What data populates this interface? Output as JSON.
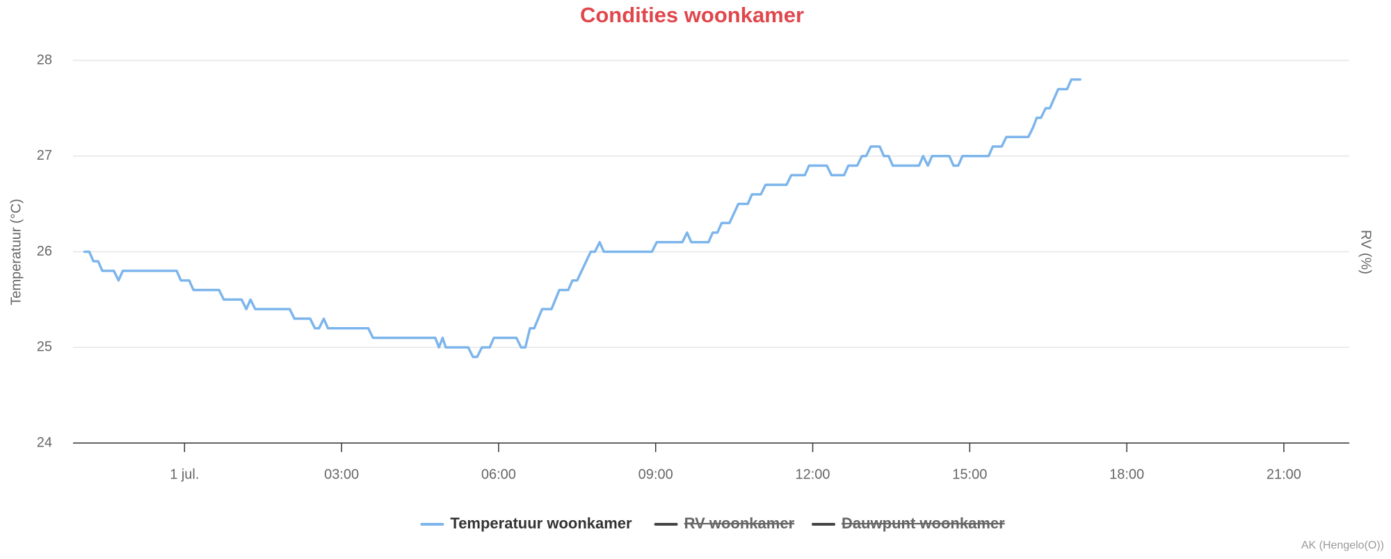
{
  "chart_data": {
    "type": "line",
    "title": "Condities woonkamer",
    "y_label": "Temperatuur (°C)",
    "y2_label": "RV (%)",
    "credits": "AK (Hengelo(O))",
    "xlim": [
      -2.13,
      22.25
    ],
    "xticks": [
      {
        "value": 0,
        "label": "1 jul."
      },
      {
        "value": 3,
        "label": "03:00"
      },
      {
        "value": 6,
        "label": "06:00"
      },
      {
        "value": 9,
        "label": "09:00"
      },
      {
        "value": 12,
        "label": "12:00"
      },
      {
        "value": 15,
        "label": "15:00"
      },
      {
        "value": 18,
        "label": "18:00"
      },
      {
        "value": 21,
        "label": "21:00"
      }
    ],
    "ylim": [
      24,
      28
    ],
    "yticks": [
      24,
      25,
      26,
      27,
      28
    ],
    "grid": true,
    "legend": "bottom",
    "x": [
      -1.91,
      -1.82,
      -1.74,
      -1.65,
      -1.57,
      -1.35,
      -1.26,
      -1.18,
      -0.15,
      -0.07,
      0.09,
      0.17,
      0.66,
      0.75,
      1.09,
      1.18,
      1.26,
      1.35,
      2.01,
      2.1,
      2.4,
      2.49,
      2.57,
      2.66,
      2.74,
      3.51,
      3.6,
      4.79,
      4.86,
      4.93,
      4.99,
      5.42,
      5.51,
      5.59,
      5.68,
      5.83,
      5.91,
      6.34,
      6.43,
      6.51,
      6.6,
      6.68,
      6.83,
      7.01,
      7.16,
      7.33,
      7.41,
      7.5,
      7.76,
      7.84,
      7.93,
      8.01,
      8.93,
      9.02,
      9.51,
      9.6,
      9.68,
      10.01,
      10.09,
      10.18,
      10.26,
      10.41,
      10.58,
      10.76,
      10.84,
      11.01,
      11.1,
      11.5,
      11.59,
      11.85,
      11.93,
      12.27,
      12.36,
      12.6,
      12.68,
      12.85,
      12.94,
      13.02,
      13.11,
      13.28,
      13.36,
      13.45,
      13.53,
      14.03,
      14.11,
      14.2,
      14.28,
      14.61,
      14.69,
      14.78,
      14.86,
      15.36,
      15.44,
      15.61,
      15.7,
      16.12,
      16.21,
      16.28,
      16.36,
      16.45,
      16.53,
      16.69,
      16.86,
      16.94,
      17.11
    ],
    "series": [
      {
        "name": "Temperatuur woonkamer",
        "color": "#7cb5ec",
        "visible": true,
        "values": [
          26.0,
          26.0,
          25.9,
          25.9,
          25.8,
          25.8,
          25.7,
          25.8,
          25.8,
          25.7,
          25.7,
          25.6,
          25.6,
          25.5,
          25.5,
          25.4,
          25.5,
          25.4,
          25.4,
          25.3,
          25.3,
          25.2,
          25.2,
          25.3,
          25.2,
          25.2,
          25.1,
          25.1,
          25.0,
          25.1,
          25.0,
          25.0,
          24.9,
          24.9,
          25.0,
          25.0,
          25.1,
          25.1,
          25.0,
          25.0,
          25.2,
          25.2,
          25.4,
          25.4,
          25.6,
          25.6,
          25.7,
          25.7,
          26.0,
          26.0,
          26.1,
          26.0,
          26.0,
          26.1,
          26.1,
          26.2,
          26.1,
          26.1,
          26.2,
          26.2,
          26.3,
          26.3,
          26.5,
          26.5,
          26.6,
          26.6,
          26.7,
          26.7,
          26.8,
          26.8,
          26.9,
          26.9,
          26.8,
          26.8,
          26.9,
          26.9,
          27.0,
          27.0,
          27.1,
          27.1,
          27.0,
          27.0,
          26.9,
          26.9,
          27.0,
          26.9,
          27.0,
          27.0,
          26.9,
          26.9,
          27.0,
          27.0,
          27.1,
          27.1,
          27.2,
          27.2,
          27.3,
          27.4,
          27.4,
          27.5,
          27.5,
          27.7,
          27.7,
          27.8,
          27.8
        ]
      },
      {
        "name": "RV woonkamer",
        "color": "#444444",
        "visible": false
      },
      {
        "name": "Dauwpunt woonkamer",
        "color": "#444444",
        "visible": false
      }
    ]
  }
}
